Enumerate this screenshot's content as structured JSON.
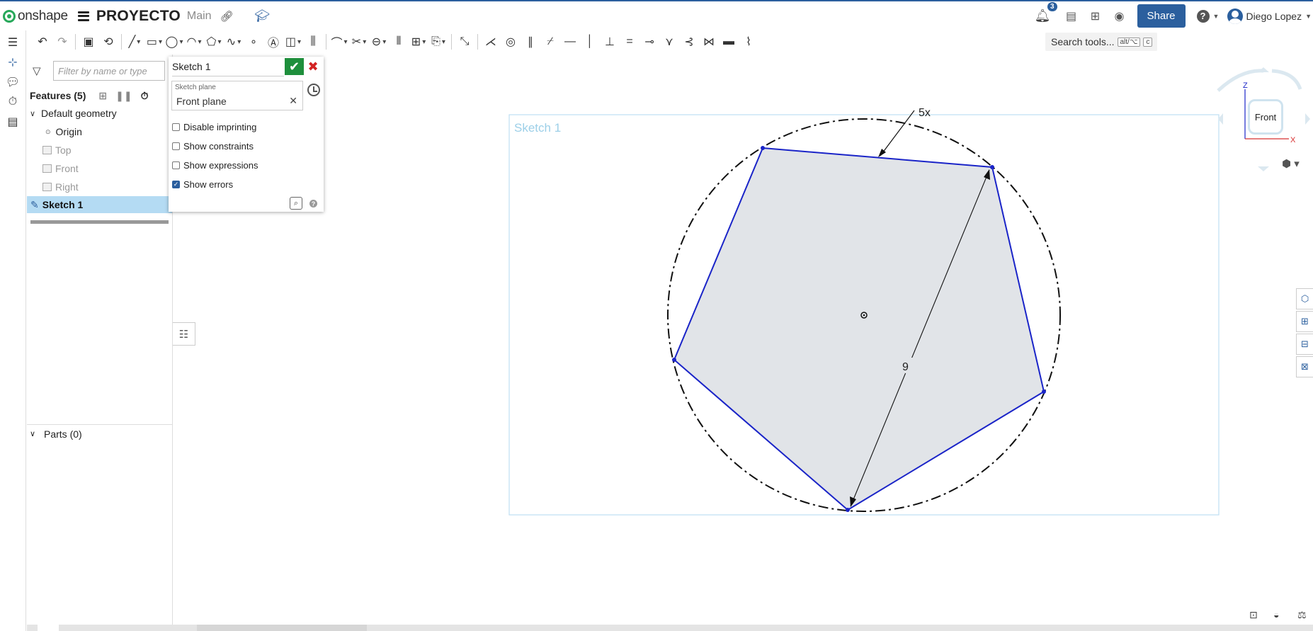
{
  "topbar": {
    "logo_text": "onshape",
    "document_title": "PROYECTO",
    "branch": "Main",
    "notifications_count": "3",
    "share_label": "Share",
    "help_label": "?",
    "user_name": "Diego Lopez"
  },
  "toolbar": {
    "search_label": "Search tools...",
    "search_shortcut_1": "alt/⌥",
    "search_shortcut_2": "c"
  },
  "feature_panel": {
    "filter_placeholder": "Filter by name or type",
    "features_header": "Features (5)",
    "default_geometry": "Default geometry",
    "origin": "Origin",
    "top": "Top",
    "front": "Front",
    "right": "Right",
    "sketch": "Sketch 1",
    "parts_header": "Parts (0)"
  },
  "sketch_dialog": {
    "title": "Sketch 1",
    "plane_label": "Sketch plane",
    "plane_value": "Front plane",
    "options": [
      {
        "label": "Disable imprinting",
        "checked": false
      },
      {
        "label": "Show constraints",
        "checked": false
      },
      {
        "label": "Show expressions",
        "checked": false
      },
      {
        "label": "Show errors",
        "checked": true
      }
    ]
  },
  "canvas": {
    "sketch_label": "Sketch 1",
    "polygon_sides_label": "5x",
    "diameter_label": "9",
    "sketch_color": "#1a24c8",
    "sketch_label_color": "#9ccfe8"
  },
  "view_cube": {
    "face": "Front",
    "axis_z": "Z",
    "axis_x": "X"
  }
}
